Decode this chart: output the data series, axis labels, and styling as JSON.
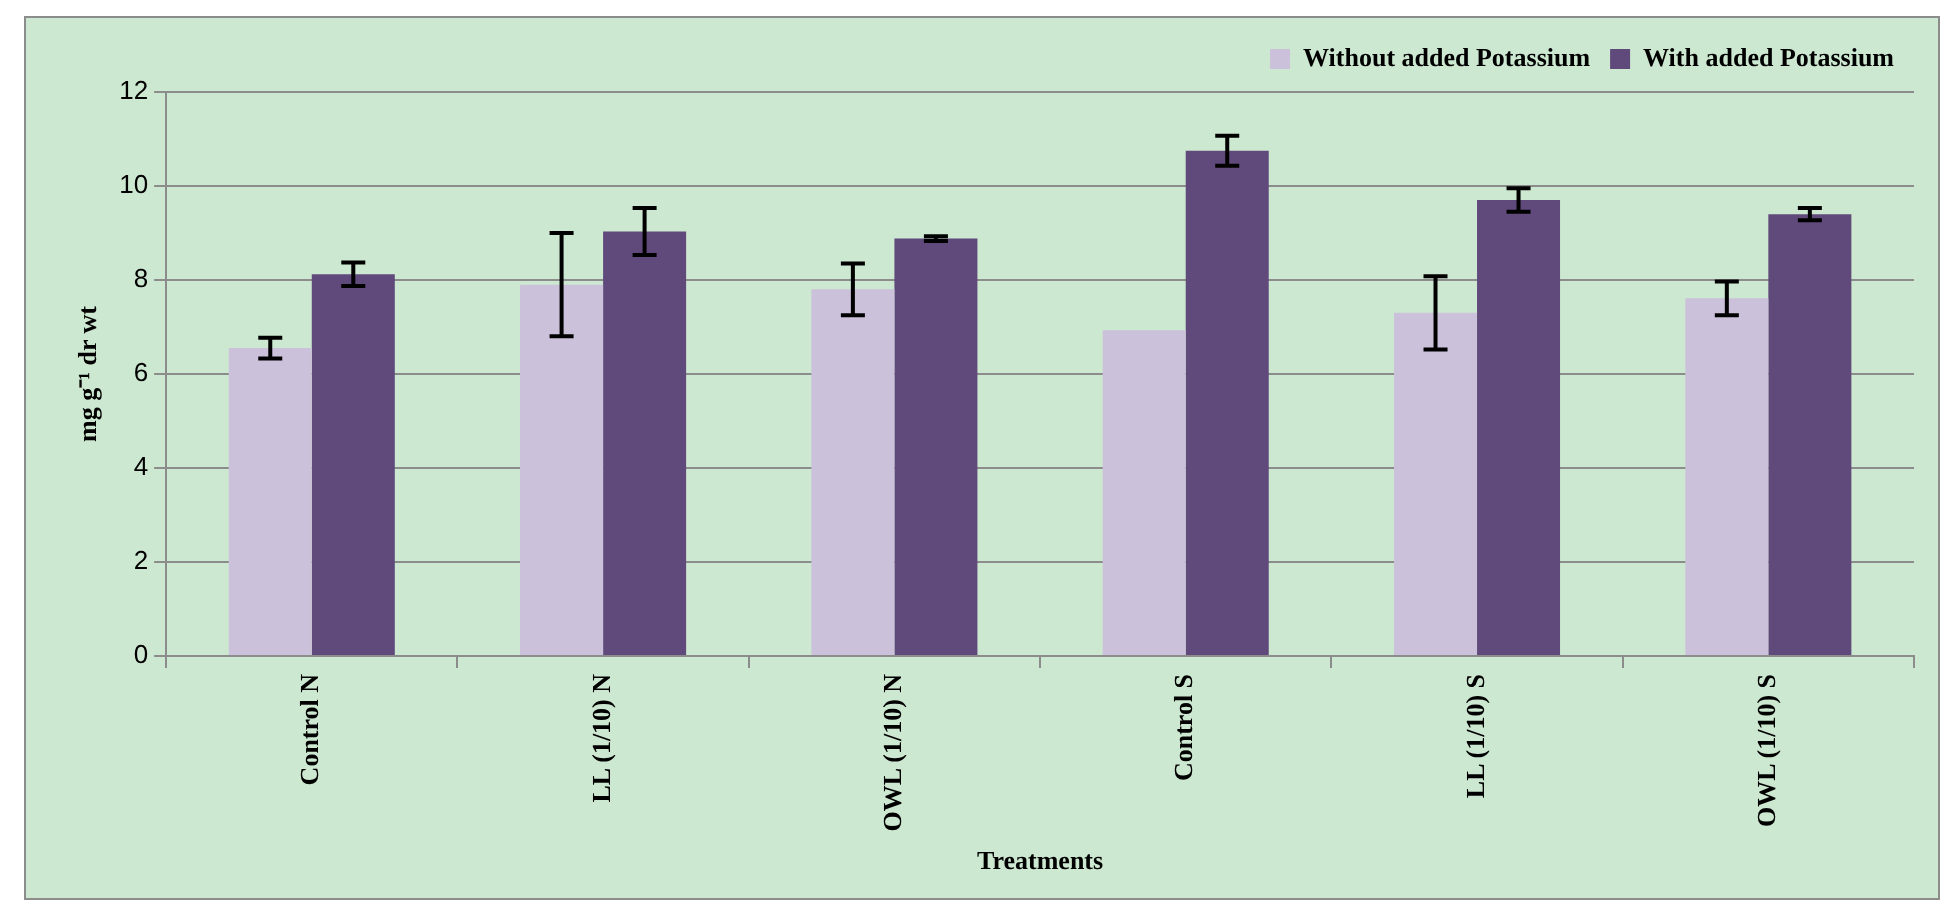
{
  "chart_data": {
    "type": "bar",
    "xlabel": "Treatments",
    "ylabel": "mg g⁻¹ dr wt",
    "categories": [
      "Control N",
      "LL (1/10) N",
      "OWL (1/10) N",
      "Control S",
      "LL (1/10) S",
      "OWL (1/10) S"
    ],
    "series": [
      {
        "name": "Without added Potassium",
        "color": "#ccc1da",
        "values": [
          6.55,
          7.9,
          7.8,
          6.93,
          7.3,
          7.61
        ],
        "errors": [
          0.22,
          1.1,
          0.55,
          null,
          0.78,
          0.36
        ]
      },
      {
        "name": "With added Potassium",
        "color": "#604a7b",
        "values": [
          8.12,
          9.03,
          8.88,
          10.75,
          9.7,
          9.4
        ],
        "errors": [
          0.25,
          0.5,
          0.05,
          0.32,
          0.25,
          0.13
        ]
      }
    ],
    "ylim": [
      0,
      12
    ],
    "yticks": [
      0,
      2,
      4,
      6,
      8,
      10,
      12
    ],
    "grid": "y",
    "legend": "top right"
  }
}
